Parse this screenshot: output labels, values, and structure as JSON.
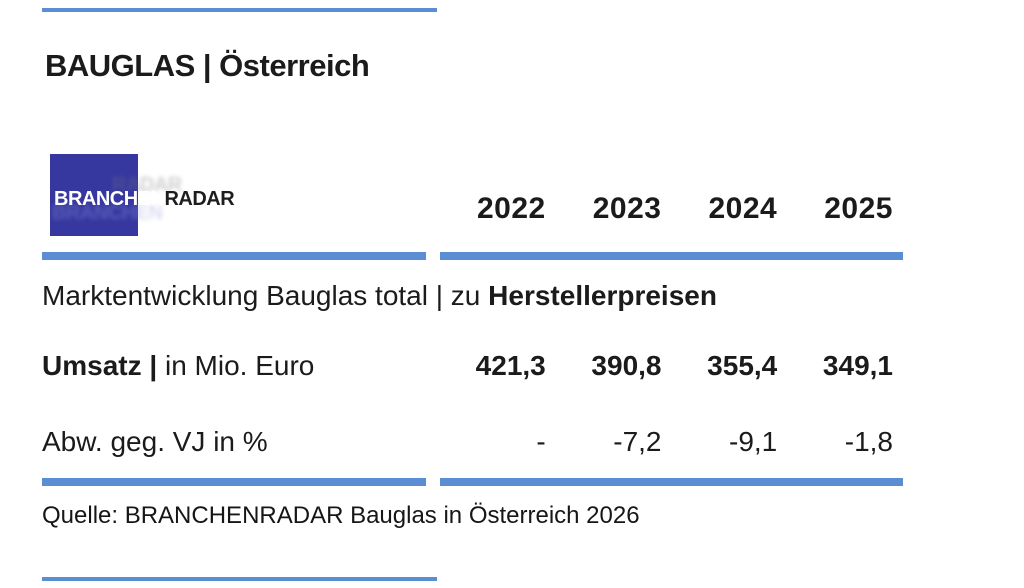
{
  "page": {
    "title": "BAUGLAS | Österreich",
    "accent_blue": "#5b8dd3",
    "logo": {
      "square_color": "#3638a0",
      "text_branchen": "BRANCHEN",
      "text_radar": "RADAR"
    },
    "table": {
      "year_headers": [
        "2022",
        "2023",
        "2024",
        "2025"
      ],
      "section_label_regular": "Marktentwicklung Bauglas total | zu ",
      "section_label_bold": "Herstellerpreisen",
      "rows": [
        {
          "label_bold": "Umsatz | ",
          "label_regular": "in Mio. Euro",
          "values": [
            "421,3",
            "390,8",
            "355,4",
            "349,1"
          ]
        },
        {
          "label_bold": "",
          "label_regular": "Abw. geg. VJ in %",
          "values": [
            "-",
            "-7,2",
            "-9,1",
            "-1,8"
          ]
        }
      ]
    },
    "source": "Quelle: BRANCHENRADAR Bauglas in Österreich 2026"
  },
  "chart_data": {
    "type": "table",
    "title": "BAUGLAS | Österreich",
    "subtitle": "Marktentwicklung Bauglas total | zu Herstellerpreisen",
    "categories": [
      "2022",
      "2023",
      "2024",
      "2025"
    ],
    "series": [
      {
        "name": "Umsatz | in Mio. Euro",
        "values": [
          421.3,
          390.8,
          355.4,
          349.1
        ]
      },
      {
        "name": "Abw. geg. VJ in %",
        "values": [
          null,
          -7.2,
          -9.1,
          -1.8
        ]
      }
    ],
    "source": "Quelle: BRANCHENRADAR Bauglas in Österreich 2026"
  }
}
